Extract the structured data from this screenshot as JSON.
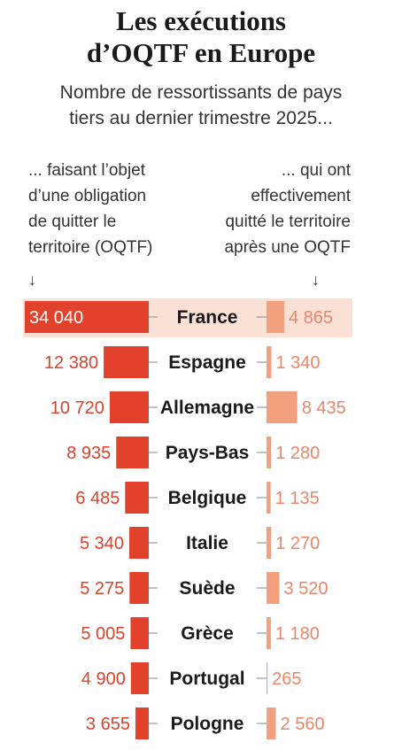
{
  "title_lines": [
    "Les exécutions",
    "d’OQTF en Europe"
  ],
  "subtitle_lines": [
    "Nombre de ressortissants de pays",
    "tiers au dernier trimestre 2025..."
  ],
  "left_header_lines": [
    "... faisant l’objet",
    "d’une obligation",
    "de quitter le",
    "territoire (OQTF)"
  ],
  "right_header_lines": [
    "... qui ont",
    "effectivement",
    "quitté le territoire",
    "après une OQTF"
  ],
  "arrow_glyph": "↓",
  "colors": {
    "left_bar": "#e2412c",
    "right_bar": "#f3a07f",
    "highlight_bg": "#fbe0d6",
    "left_text": "#d8432d",
    "right_text": "#e8866a",
    "connector": "#999999"
  },
  "chart_data": {
    "type": "bar",
    "categories": [
      "France",
      "Espagne",
      "Allemagne",
      "Pays-Bas",
      "Belgique",
      "Italie",
      "Suède",
      "Grèce",
      "Portugal",
      "Pologne"
    ],
    "series": [
      {
        "values": [
          34040,
          12380,
          10720,
          8935,
          6485,
          5340,
          5275,
          5005,
          4900,
          3655
        ],
        "labels": [
          "34 040",
          "12 380",
          "10 720",
          "8 935",
          "6 485",
          "5 340",
          "5 275",
          "5 005",
          "4 900",
          "3 655"
        ]
      },
      {
        "values": [
          4865,
          1340,
          8435,
          1280,
          1135,
          1270,
          3520,
          1180,
          265,
          2560
        ],
        "labels": [
          "4 865",
          "1 340",
          "8 435",
          "1 280",
          "1 135",
          "1 270",
          "3 520",
          "1 180",
          "265",
          "2 560"
        ]
      }
    ],
    "highlighted_category": "France"
  }
}
